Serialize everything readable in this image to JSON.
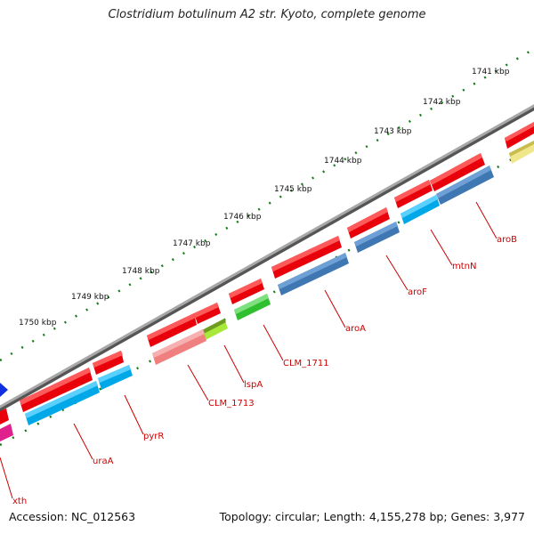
{
  "title": "Clostridium botulinum A2 str. Kyoto, complete genome",
  "accession": "Accession: NC_012563",
  "stats": "Topology: circular; Length: 4,155,278 bp; Genes: 3,977",
  "kbp_labels": [
    "1741 kbp",
    "1742 kbp",
    "1743 kbp",
    "1744 kbp",
    "1745 kbp",
    "1746 kbp",
    "1747 kbp",
    "1748 kbp",
    "1749 kbp",
    "1750 kbp"
  ],
  "gene_labels": [
    "aroB",
    "mtnN",
    "aroF",
    "aroA",
    "CLM_1711",
    "lspA",
    "CLM_1713",
    "pyrR",
    "uraA",
    "xth"
  ],
  "colors": {
    "backbone": "#7a7a7a",
    "forward_cds": "#e8000b",
    "reverse_cds_blue": "#00a8e8",
    "reverse_cds_steel": "#3f77b3",
    "pink_cds": "#f08080",
    "green_cds": "#2fbf2f",
    "yellow_cds": "#f0e68c",
    "label_red": "#cc0000",
    "tick_green": "#1a7a1a"
  }
}
